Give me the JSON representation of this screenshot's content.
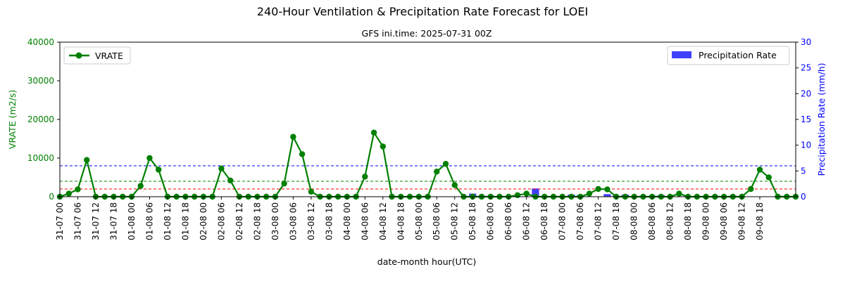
{
  "chart_data": {
    "type": "line",
    "title": "240-Hour Ventilation & Precipitation Rate Forecast for LOEI",
    "subtitle": "GFS ini.time: 2025-07-31 00Z",
    "xlabel": "date-month hour(UTC)",
    "ylabel_left": "VRATE (m2/s)",
    "ylabel_right": "Precipitation Rate (mm/h)",
    "ylim_left": [
      0,
      40000
    ],
    "ylim_right": [
      0,
      30
    ],
    "left_ticks": [
      "0",
      "10000",
      "20000",
      "30000",
      "40000"
    ],
    "right_ticks": [
      "0",
      "5",
      "10",
      "15",
      "20",
      "25",
      "30"
    ],
    "x_tick_labels": [
      "31-07 00",
      "31-07 06",
      "31-07 12",
      "31-07 18",
      "01-08 00",
      "01-08 06",
      "01-08 12",
      "01-08 18",
      "02-08 00",
      "02-08 06",
      "02-08 12",
      "02-08 18",
      "03-08 00",
      "03-08 06",
      "03-08 12",
      "03-08 18",
      "04-08 00",
      "04-08 06",
      "04-08 12",
      "04-08 18",
      "05-08 00",
      "05-08 06",
      "05-08 12",
      "05-08 18",
      "06-08 00",
      "06-08 06",
      "06-08 12",
      "06-08 18",
      "07-08 00",
      "07-08 06",
      "07-08 12",
      "07-08 18",
      "08-08 00",
      "08-08 06",
      "08-08 12",
      "08-08 18",
      "09-08 00",
      "09-08 06",
      "09-08 12",
      "09-08 18"
    ],
    "x_step_hours": 3,
    "series": [
      {
        "name": "VRATE",
        "color": "#008000",
        "values": [
          0,
          800,
          1900,
          9500,
          0,
          0,
          0,
          0,
          0,
          2800,
          10000,
          7000,
          0,
          0,
          0,
          0,
          0,
          0,
          7300,
          4200,
          0,
          0,
          0,
          0,
          0,
          3400,
          15500,
          11000,
          1300,
          0,
          0,
          0,
          0,
          0,
          5200,
          16600,
          13000,
          0,
          0,
          0,
          0,
          0,
          6500,
          8500,
          3000,
          0,
          0,
          0,
          0,
          0,
          0,
          400,
          800,
          0,
          0,
          0,
          0,
          0,
          0,
          800,
          2000,
          1900,
          0,
          0,
          0,
          0,
          0,
          0,
          0,
          800,
          0,
          0,
          0,
          0,
          0,
          0,
          0,
          2000,
          7000,
          5000,
          0,
          0,
          0
        ]
      },
      {
        "name": "Precipitation Rate",
        "color": "#4040ff",
        "type": "bar",
        "values": [
          0,
          0,
          0,
          0,
          0,
          0,
          0,
          0,
          0,
          0,
          0,
          0,
          0,
          0,
          0,
          0,
          0,
          0,
          0,
          0,
          0,
          0,
          0,
          0,
          0,
          0,
          0,
          0,
          0,
          0,
          0,
          0,
          0,
          0,
          0,
          0,
          0,
          0,
          0,
          0,
          0,
          0,
          0,
          0,
          0,
          0,
          0.6,
          0.2,
          0.2,
          0,
          0,
          0,
          0,
          1.6,
          0,
          0,
          0,
          0.4,
          0.3,
          0,
          0,
          0.5,
          0.2,
          0.4,
          0,
          0,
          0.2,
          0.3,
          0,
          0,
          0,
          0,
          0,
          0,
          0,
          0.2,
          0,
          0,
          0,
          0,
          0,
          0,
          0,
          0,
          0
        ]
      }
    ],
    "reference_lines": [
      {
        "axis": "left",
        "value": 8000,
        "color": "#0000ff"
      },
      {
        "axis": "left",
        "value": 4000,
        "color": "#008000"
      },
      {
        "axis": "left",
        "value": 2000,
        "color": "#ff0000"
      }
    ],
    "legend_left": {
      "placement": "upper-left",
      "label": "VRATE"
    },
    "legend_right": {
      "placement": "upper-right",
      "label": "Precipitation Rate"
    },
    "grid": false
  }
}
